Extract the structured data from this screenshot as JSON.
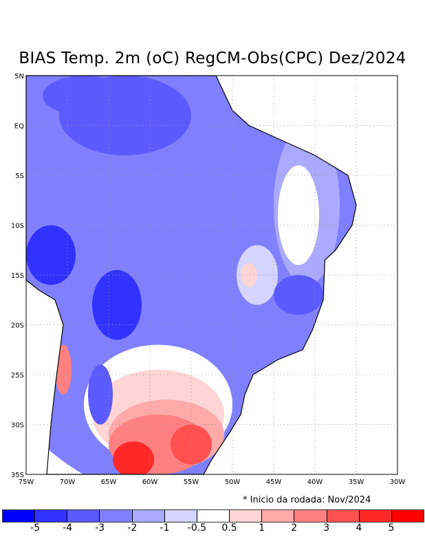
{
  "chart_data": {
    "type": "heatmap",
    "title": "BIAS Temp. 2m (oC) RegCM-Obs(CPC) Dez/2024",
    "note": "* Inicio da rodada: Nov/2024",
    "xlim": [
      -75,
      -30
    ],
    "ylim": [
      -35,
      5
    ],
    "x_ticks": [
      "75W",
      "70W",
      "65W",
      "60W",
      "55W",
      "50W",
      "45W",
      "40W",
      "35W",
      "30W"
    ],
    "y_ticks": [
      "5N",
      "EQ",
      "5S",
      "10S",
      "15S",
      "20S",
      "25S",
      "30S",
      "35S"
    ],
    "grid": true,
    "colorbar": {
      "labels": [
        "-5",
        "-4",
        "-3",
        "-2",
        "-1",
        "-0.5",
        "0.5",
        "1",
        "2",
        "3",
        "4",
        "5"
      ],
      "colors": [
        "#0000ff",
        "#3232ff",
        "#5a5aff",
        "#8080ff",
        "#aaaaff",
        "#d5d5ff",
        "#ffffff",
        "#ffd5d5",
        "#ffaaaa",
        "#ff8080",
        "#ff5050",
        "#ff2828",
        "#ff0000"
      ]
    },
    "regions": [
      {
        "lon": -55,
        "lat": -8,
        "rlon": 30,
        "rlat": 30,
        "value": -2.5
      },
      {
        "lon": -63,
        "lat": 1,
        "rlon": 8,
        "rlat": 4,
        "value": -3.5
      },
      {
        "lon": -68,
        "lat": 3,
        "rlon": 5,
        "rlat": 2,
        "value": -3.5
      },
      {
        "lon": -41,
        "lat": -8,
        "rlon": 4,
        "rlat": 8,
        "value": -1.5
      },
      {
        "lon": -42,
        "lat": -9,
        "rlon": 2.5,
        "rlat": 5,
        "value": 0
      },
      {
        "lon": -47,
        "lat": -15,
        "rlon": 2.5,
        "rlat": 3,
        "value": -0.7
      },
      {
        "lon": -48,
        "lat": -15,
        "rlon": 1,
        "rlat": 1.2,
        "value": 0.7
      },
      {
        "lon": -72,
        "lat": -13,
        "rlon": 3,
        "rlat": 3,
        "value": -4.5
      },
      {
        "lon": -64,
        "lat": -18,
        "rlon": 3,
        "rlat": 3.5,
        "value": -4.5
      },
      {
        "lon": -42,
        "lat": -17,
        "rlon": 3,
        "rlat": 2,
        "value": -3.5
      },
      {
        "lon": -59,
        "lat": -28,
        "rlon": 9,
        "rlat": 6,
        "value": 0
      },
      {
        "lon": -59,
        "lat": -29,
        "rlon": 8,
        "rlat": 4.5,
        "value": 0.7
      },
      {
        "lon": -58,
        "lat": -31,
        "rlon": 7,
        "rlat": 3.5,
        "value": 1.5
      },
      {
        "lon": -59,
        "lat": -32,
        "rlon": 6,
        "rlat": 3,
        "value": 2.5
      },
      {
        "lon": -62,
        "lat": -33.5,
        "rlon": 2.5,
        "rlat": 1.8,
        "value": 4.5
      },
      {
        "lon": -55,
        "lat": -32,
        "rlon": 2.5,
        "rlat": 2,
        "value": 3.5
      },
      {
        "lon": -70.5,
        "lat": -24.5,
        "rlon": 1,
        "rlat": 2.5,
        "value": 3
      },
      {
        "lon": -66,
        "lat": -27,
        "rlon": 1.5,
        "rlat": 3,
        "value": -3.5
      }
    ]
  }
}
